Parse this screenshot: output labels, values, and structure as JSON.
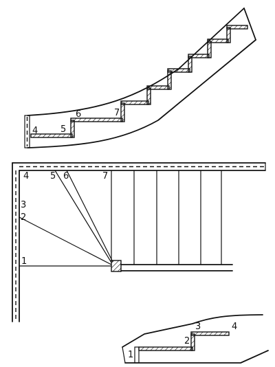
{
  "diagram": {
    "type": "winder-stair-construction",
    "views": [
      "elevation-top",
      "plan",
      "elevation-detail"
    ],
    "elevation_labels": [
      "4",
      "5",
      "6",
      "7"
    ],
    "plan_labels": [
      "4",
      "5",
      "6",
      "7",
      "3",
      "2",
      "1"
    ],
    "detail_labels": [
      "1",
      "2",
      "3",
      "4"
    ]
  }
}
